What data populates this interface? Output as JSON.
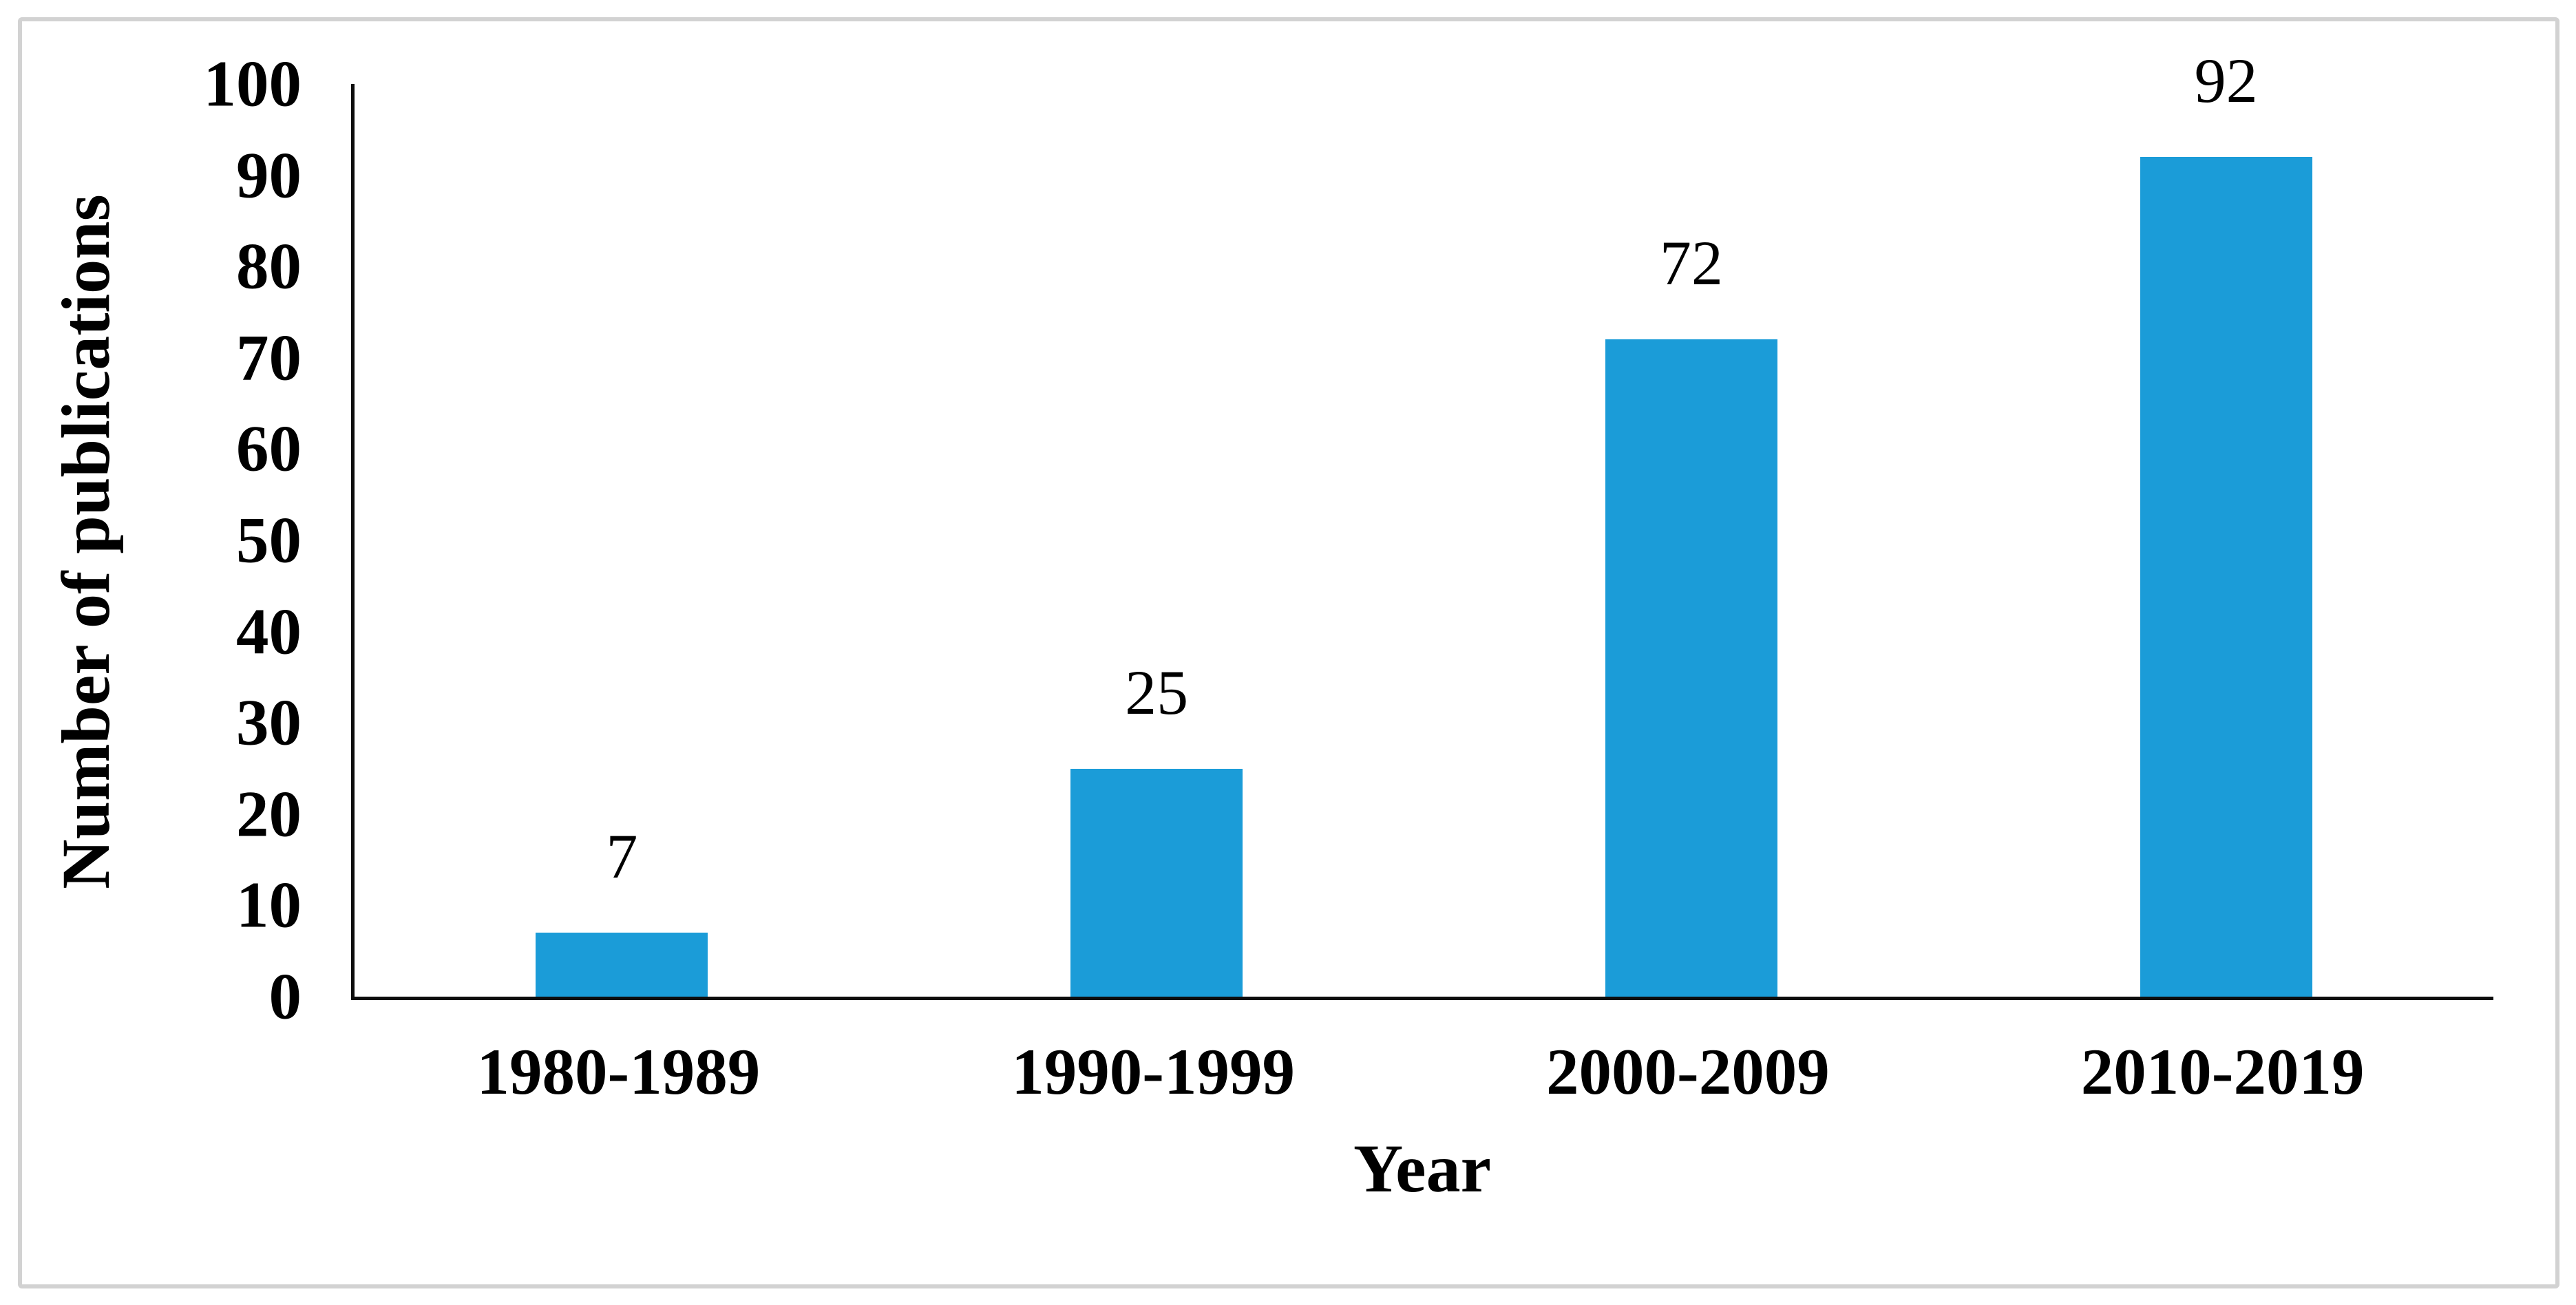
{
  "figure": {
    "background": "#ffffff",
    "frame_border_color": "#d2d2d2"
  },
  "chart_data": {
    "type": "bar",
    "title": "",
    "categories": [
      "1980-1989",
      "1990-1999",
      "2000-2009",
      "2010-2019"
    ],
    "values": [
      7,
      25,
      72,
      92
    ],
    "data_labels": [
      "7",
      "25",
      "72",
      "92"
    ],
    "xlabel": "Year",
    "ylabel": "Number of publications",
    "ylim": [
      0,
      100
    ],
    "yticks": [
      0,
      10,
      20,
      30,
      40,
      50,
      60,
      70,
      80,
      90,
      100
    ],
    "grid": false,
    "legend_position": "none",
    "bar_color": "#1b9cd8",
    "axis_color": "#0d0d0d",
    "text_color": "#000000"
  }
}
